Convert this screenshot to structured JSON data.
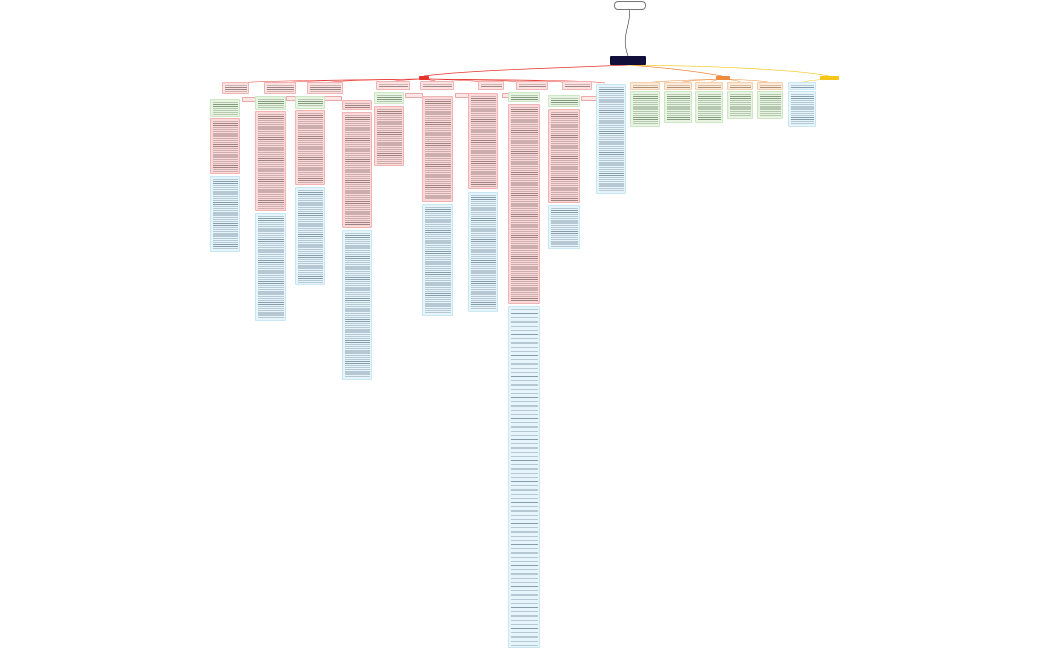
{
  "mindmap": {
    "top_bubble": "",
    "root_title": "",
    "categories": [
      {
        "label": "",
        "color": "#e8332c",
        "text_color": "#ffffff"
      },
      {
        "label": "",
        "color": "#f08a3c",
        "text_color": "#ffffff"
      },
      {
        "label": "",
        "color": "#f5c518",
        "text_color": "#3a2e00"
      }
    ]
  },
  "colors": {
    "root_bg": "#120f3a",
    "branch_red": "#e8332c",
    "branch_orange": "#f08a3c",
    "branch_yellow": "#f5c518",
    "note_pink": "#fcd9d9",
    "note_green": "#e7f4e2",
    "note_blue": "#e6f4fb",
    "note_orange": "#fde9d8"
  }
}
